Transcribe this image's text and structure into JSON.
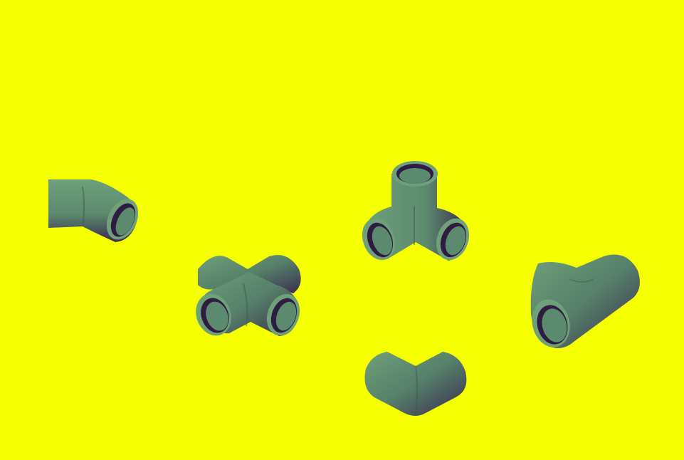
{
  "colors": {
    "background": "#f6ff00",
    "pipe_light": "#6ea07a",
    "pipe_mid": "#5c8a6e",
    "pipe_dark": "#3a2a4f",
    "pipe_inner": "#2e1c42"
  },
  "fittings": [
    {
      "id": "elbow-45",
      "icon": "pipe-elbow-45-icon"
    },
    {
      "id": "cross",
      "icon": "pipe-cross-icon"
    },
    {
      "id": "corner-tee-3way",
      "icon": "pipe-corner-3way-icon"
    },
    {
      "id": "tee",
      "icon": "pipe-tee-icon"
    },
    {
      "id": "elbow-90",
      "icon": "pipe-elbow-90-icon"
    }
  ]
}
